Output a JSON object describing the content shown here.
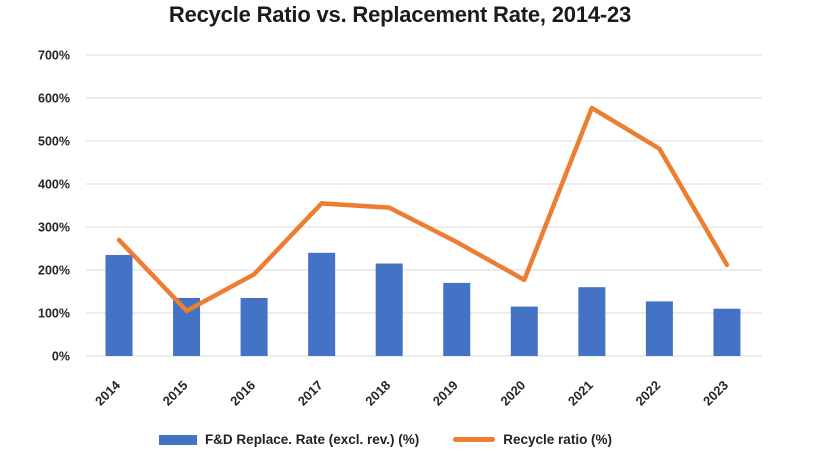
{
  "chart_data": {
    "type": "combo",
    "title": "Recycle Ratio vs. Replacement Rate, 2014-23",
    "categories": [
      "2014",
      "2015",
      "2016",
      "2017",
      "2018",
      "2019",
      "2020",
      "2021",
      "2022",
      "2023"
    ],
    "series": [
      {
        "name": "F&D Replace. Rate (excl. rev.) (%)",
        "chart_type": "bar",
        "color": "#4472C4",
        "values": [
          235,
          135,
          135,
          240,
          215,
          170,
          115,
          160,
          127,
          110
        ]
      },
      {
        "name": "Recycle ratio (%)",
        "chart_type": "line",
        "color": "#ED7D31",
        "values": [
          270,
          105,
          190,
          355,
          345,
          265,
          177,
          577,
          482,
          212
        ]
      }
    ],
    "y_axis": {
      "min": 0,
      "max": 700,
      "step": 100,
      "suffix": "%",
      "tick_labels": [
        "0%",
        "100%",
        "200%",
        "300%",
        "400%",
        "500%",
        "600%",
        "700%"
      ]
    },
    "x_axis": {
      "label_rotation_deg": 45
    },
    "grid": true,
    "gridline_color": "#D9D9D9",
    "background_color": "#FFFFFF",
    "text_color": "#262626",
    "title_color": "#1B1B1B",
    "legend_position": "bottom"
  }
}
